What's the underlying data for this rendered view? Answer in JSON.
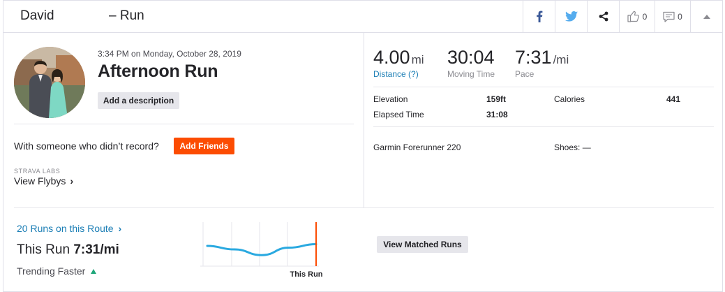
{
  "header": {
    "athlete_name": "David",
    "title_suffix": "– Run",
    "kudos_count": "0",
    "comment_count": "0"
  },
  "icons": {
    "facebook": "facebook-icon",
    "twitter": "twitter-icon",
    "share": "share-icon",
    "kudos": "thumbs-up-icon",
    "comment": "comment-icon",
    "collapse": "collapse-caret-icon"
  },
  "colors": {
    "brand_orange": "#fc4c02",
    "link_blue": "#1b7eb5",
    "trend_line": "#2aa9e0",
    "trend_up": "#1fa67a",
    "facebook": "#3b5998",
    "twitter": "#55acee"
  },
  "activity": {
    "date": "3:34 PM on Monday, October 28, 2019",
    "name": "Afternoon Run",
    "add_description_label": "Add a description",
    "with_someone_text": "With someone who didn’t record?",
    "add_friends_label": "Add Friends",
    "labs_label": "STRAVA LABS",
    "flybys_label": "View Flybys",
    "chevron": "›"
  },
  "stats": {
    "distance": {
      "value": "4.00",
      "unit": "mi",
      "label": "Distance (?)"
    },
    "moving_time": {
      "value": "30:04",
      "label": "Moving Time"
    },
    "pace": {
      "value": "7:31",
      "unit": "/mi",
      "label": "Pace"
    }
  },
  "more_stats": {
    "elevation_label": "Elevation",
    "elevation_value": "159ft",
    "calories_label": "Calories",
    "calories_value": "441",
    "elapsed_label": "Elapsed Time",
    "elapsed_value": "31:08",
    "device": "Garmin Forerunner 220",
    "shoes_label": "Shoes: —"
  },
  "route": {
    "runs_link": "20 Runs on this Route",
    "chevron": "›",
    "this_run_prefix": "This Run",
    "this_run_pace": "7:31/mi",
    "trending": "Trending Faster",
    "chart_marker_label": "This Run",
    "view_matched_label": "View Matched Runs",
    "trend_relative_values": [
      0.46,
      0.38,
      0.25,
      0.42,
      0.5
    ]
  }
}
